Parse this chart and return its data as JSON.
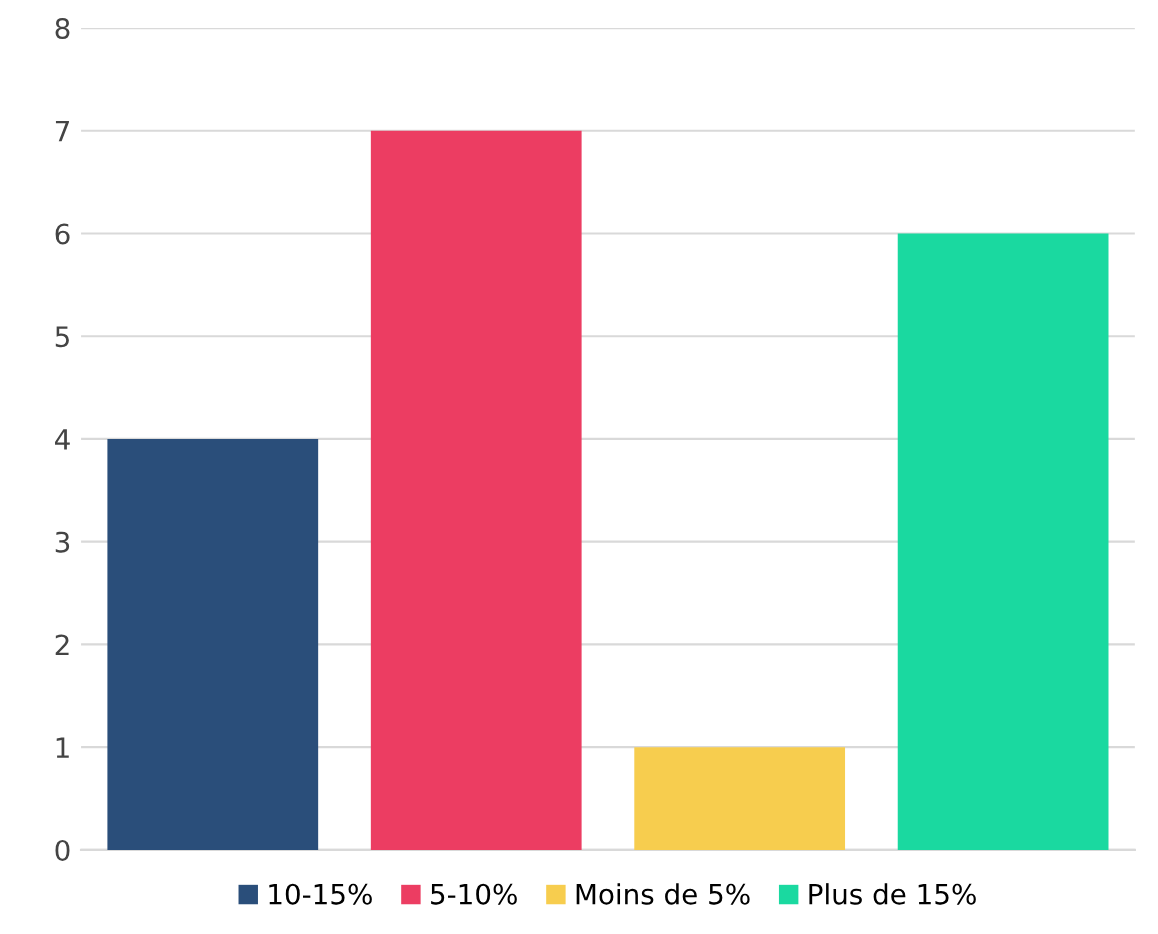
{
  "chart_data": {
    "type": "bar",
    "categories": [
      null,
      null,
      null,
      null
    ],
    "series": [
      {
        "name": "10-15%",
        "color": "#2a4e7a",
        "values": [
          4,
          null,
          null,
          null
        ]
      },
      {
        "name": "5-10%",
        "color": "#ec3d62",
        "values": [
          null,
          7,
          null,
          null
        ]
      },
      {
        "name": "Moins de 5%",
        "color": "#f7cd4e",
        "values": [
          null,
          null,
          1,
          null
        ]
      },
      {
        "name": "Plus de 15%",
        "color": "#1ad9a0",
        "values": [
          null,
          null,
          null,
          6
        ]
      }
    ],
    "ylim": [
      0,
      8
    ],
    "yticks": [
      0,
      1,
      2,
      3,
      4,
      5,
      6,
      7,
      8
    ],
    "grid": "y",
    "legend": "bottom"
  }
}
